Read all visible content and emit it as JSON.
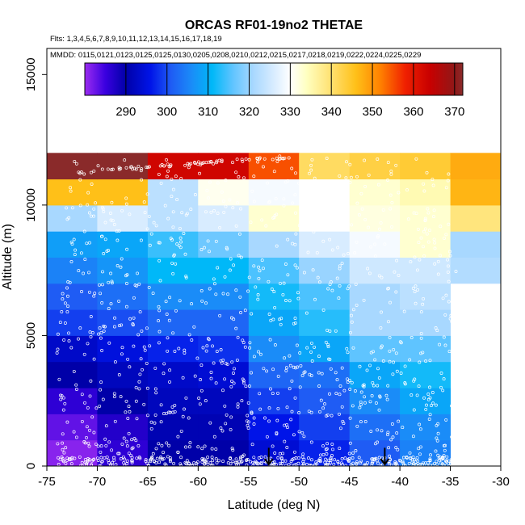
{
  "chart_data": {
    "type": "heatmap",
    "title": "ORCAS RF01-19no2 THETAE",
    "subtitle_flights": "Flts: 1,3,4,5,6,7,8,9,10,11,12,13,14,15,16,17,18,19",
    "subtitle_dates": "MMDD: 0115,0121,0123,0125,0125,0130,0205,0208,0210,0212,0215,0217,0218,0219,0222,0224,0225,0229",
    "xlabel": "Latitude (deg N)",
    "ylabel": "Altitude (m)",
    "xlim": [
      -75,
      -30
    ],
    "ylim": [
      0,
      16000
    ],
    "x_ticks": [
      "-75",
      "-70",
      "-65",
      "-60",
      "-55",
      "-50",
      "-45",
      "-40",
      "-35",
      "-30"
    ],
    "y_ticks": [
      "0",
      "5000",
      "10000",
      "15000"
    ],
    "colorbar": {
      "range": [
        280,
        372
      ],
      "ticks": [
        "290",
        "300",
        "310",
        "320",
        "330",
        "340",
        "350",
        "360",
        "370"
      ],
      "stops": [
        {
          "v": 280,
          "c": "#9b2cf0"
        },
        {
          "v": 285,
          "c": "#3a00e0"
        },
        {
          "v": 290,
          "c": "#0000a8"
        },
        {
          "v": 296,
          "c": "#0014e8"
        },
        {
          "v": 301,
          "c": "#1f5cf4"
        },
        {
          "v": 306,
          "c": "#1a8cf8"
        },
        {
          "v": 311,
          "c": "#00b8f8"
        },
        {
          "v": 316,
          "c": "#5fc4ff"
        },
        {
          "v": 321,
          "c": "#a8d8ff"
        },
        {
          "v": 326,
          "c": "#d8ecff"
        },
        {
          "v": 330,
          "c": "#ffffff"
        },
        {
          "v": 334,
          "c": "#ffffc0"
        },
        {
          "v": 340,
          "c": "#ffe070"
        },
        {
          "v": 346,
          "c": "#ffc018"
        },
        {
          "v": 352,
          "c": "#ff8000"
        },
        {
          "v": 358,
          "c": "#f02000"
        },
        {
          "v": 364,
          "c": "#c80000"
        },
        {
          "v": 370,
          "c": "#901818"
        },
        {
          "v": 372,
          "c": "#8a2a2a"
        }
      ]
    },
    "lat_bins": [
      -75,
      -70,
      -65,
      -60,
      -55,
      -50,
      -45,
      -40,
      -35,
      -30
    ],
    "alt_bins": [
      0,
      1000,
      2000,
      3000,
      4000,
      5000,
      6000,
      7000,
      8000,
      9000,
      10000,
      11000,
      12000
    ],
    "grid_values": [
      [
        281,
        286,
        290,
        290,
        294,
        297,
        301,
        305,
        null
      ],
      [
        283,
        287,
        291,
        291,
        296,
        299,
        303,
        306,
        null
      ],
      [
        286,
        290,
        292,
        292,
        299,
        301,
        306,
        309,
        null
      ],
      [
        290,
        292,
        293,
        294,
        302,
        303,
        309,
        312,
        null
      ],
      [
        293,
        295,
        297,
        298,
        306,
        309,
        316,
        316,
        null
      ],
      [
        299,
        300,
        302,
        302,
        309,
        313,
        321,
        321,
        null
      ],
      [
        301,
        303,
        306,
        306,
        312,
        315,
        321,
        323,
        null
      ],
      [
        305,
        307,
        311,
        311,
        315,
        320,
        325,
        325,
        322
      ],
      [
        308,
        309,
        314,
        317,
        321,
        326,
        329,
        333,
        321
      ],
      [
        321,
        326,
        323,
        326,
        333,
        330,
        332,
        333,
        339
      ],
      [
        346,
        346,
        323,
        331,
        329,
        330,
        333,
        335,
        347
      ],
      [
        372,
        372,
        363,
        363,
        355,
        341,
        343,
        344,
        348
      ]
    ],
    "arrow_markers_lat": [
      -53,
      -41.5
    ],
    "sample_point_color": "#ffffff"
  }
}
